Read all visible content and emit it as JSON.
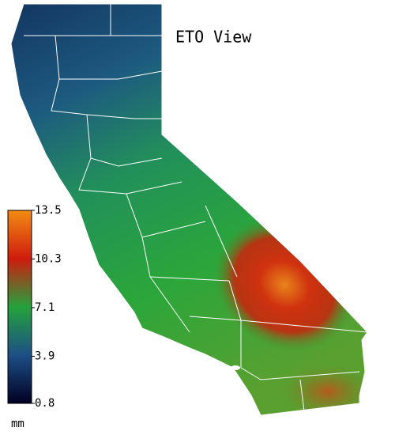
{
  "title": "ETO View",
  "colorbar": {
    "unit": "mm",
    "lim": [
      0.8,
      13.5
    ],
    "ticks": [
      0.8,
      3.9,
      7.1,
      10.3,
      13.5
    ],
    "colors": [
      "#000022",
      "#1d4f86",
      "#24a23c",
      "#cf1c0e",
      "#f28c12"
    ]
  }
}
